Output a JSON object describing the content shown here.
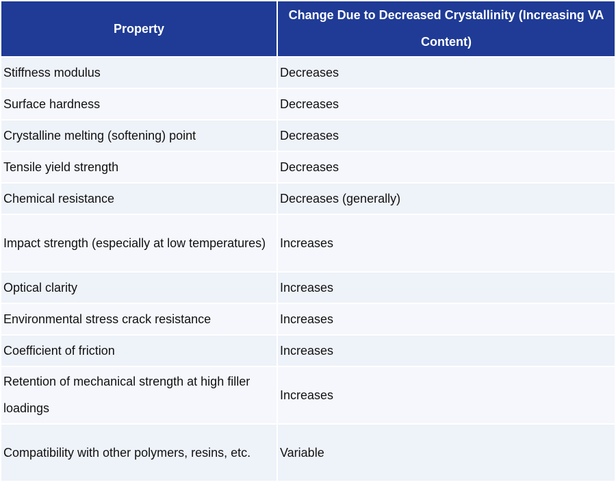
{
  "table": {
    "header": [
      "Property",
      "Change Due to Decreased Crystallinity (Increasing VA Content)"
    ],
    "rows": [
      [
        "Stiffness modulus",
        "Decreases"
      ],
      [
        "Surface hardness",
        "Decreases"
      ],
      [
        "Crystalline melting (softening) point",
        "Decreases"
      ],
      [
        "Tensile yield strength",
        "Decreases"
      ],
      [
        "Chemical resistance",
        "Decreases (generally)"
      ],
      [
        "Impact strength (especially at low temperatures)",
        "Increases"
      ],
      [
        "Optical clarity",
        "Increases"
      ],
      [
        "Environmental stress crack resistance",
        "Increases"
      ],
      [
        "Coefficient of friction",
        "Increases"
      ],
      [
        "Retention of mechanical strength at high filler loadings",
        "Increases"
      ],
      [
        "Compatibility with other polymers, resins, etc.",
        "Variable"
      ]
    ]
  }
}
